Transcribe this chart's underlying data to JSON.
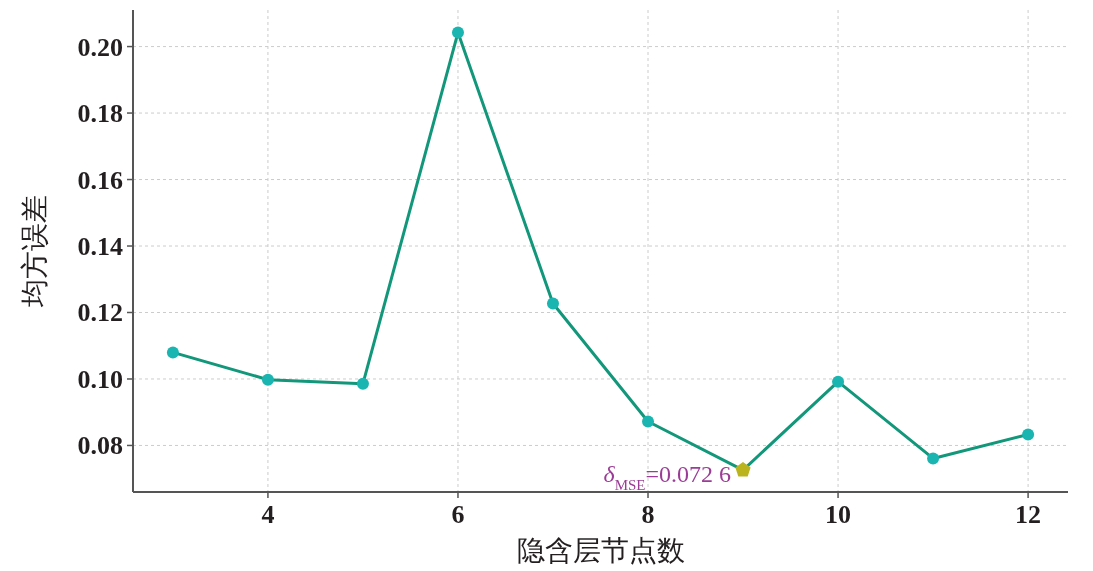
{
  "chart_data": {
    "type": "line",
    "xlabel": "隐含层节点数",
    "ylabel": "均方误差",
    "x": [
      3,
      4,
      5,
      6,
      7,
      8,
      9,
      10,
      11,
      12
    ],
    "series": [
      {
        "type": "line",
        "color": "#12977a",
        "marker": "circle",
        "colors": [
          "#1ab5b0",
          "#1ab5b0",
          "#1ab5b0",
          "#1ab5b0",
          "#1ab5b0",
          "#1ab5b0",
          "#1ab5b0",
          "#1ab5b0",
          "#1ab5b0",
          "#1ab5b0"
        ],
        "values": [
          0.108,
          0.0998,
          0.0986,
          0.2042,
          0.1227,
          0.0872,
          0.0726,
          0.0992,
          0.0761,
          0.0833
        ]
      },
      {
        "type": "scatter",
        "x": [
          9
        ],
        "color": "#bcb41e",
        "values": [
          0.0726
        ]
      }
    ],
    "annotations": [
      {
        "text": "δ$_{MSE}$=0.072 6",
        "x": 9,
        "y": 0.0726
      }
    ],
    "xlim": [
      2.58,
      12.42
    ],
    "ylim": [
      0.066,
      0.211
    ],
    "xticks": [
      4,
      6,
      8,
      10,
      12
    ],
    "yticks": [
      0.08,
      {
        "value": 0.1,
        "label": "0.10"
      },
      0.12,
      0.14,
      0.16,
      0.18,
      {
        "value": 0.2,
        "label": "0.20"
      }
    ],
    "grid": true
  }
}
